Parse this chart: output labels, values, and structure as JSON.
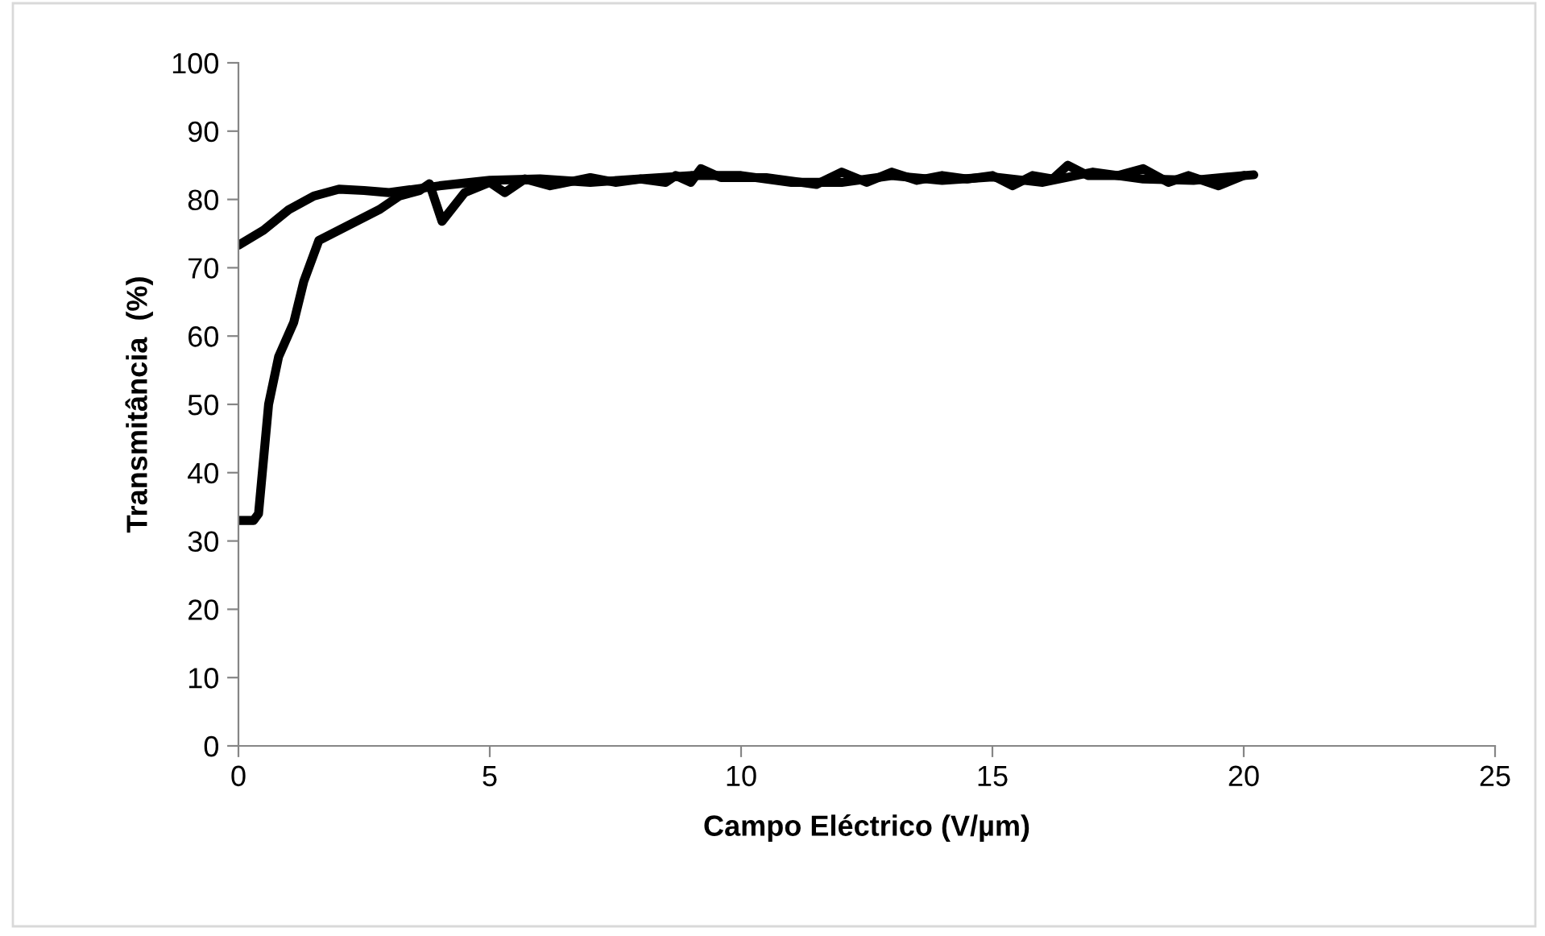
{
  "chart_data": {
    "type": "line",
    "xlabel": "Campo Eléctrico (V/µm)",
    "ylabel": "Transmitância  (%)",
    "xlim": [
      0,
      25
    ],
    "xticks": [
      0,
      5,
      10,
      15,
      20,
      25
    ],
    "ylim": [
      0,
      100
    ],
    "yticks": [
      0,
      10,
      20,
      30,
      40,
      50,
      60,
      70,
      80,
      90,
      100
    ],
    "grid": false,
    "marker": "none",
    "line_style": "solid",
    "series": [
      {
        "color": "#000000",
        "x": [
          0,
          0.5,
          1,
          1.5,
          2,
          2.5,
          3,
          4,
          5,
          6,
          7,
          8,
          9,
          10,
          11,
          12,
          13,
          14,
          15,
          16,
          17,
          18,
          19,
          20
        ],
        "values": [
          73.3,
          75.5,
          78.5,
          80.5,
          81.5,
          81.3,
          81,
          82,
          82.8,
          83,
          82.5,
          83,
          83.5,
          83.5,
          82.5,
          82.5,
          83.5,
          82.8,
          83.3,
          82.5,
          84,
          83,
          82.8,
          83.5
        ]
      },
      {
        "color": "#000000",
        "x": [
          0,
          0.3,
          0.4,
          0.6,
          0.8,
          1.1,
          1.3,
          1.6,
          2,
          2.4,
          2.8,
          3.2,
          3.6,
          3.8,
          4.05,
          4.5,
          5,
          5.3,
          5.7,
          6.2,
          7,
          7.5,
          8,
          8.5,
          8.7,
          9,
          9.2,
          9.6,
          10.5,
          11.5,
          12,
          12.5,
          13,
          13.5,
          14,
          14.5,
          15,
          15.4,
          15.8,
          16.2,
          16.5,
          16.9,
          17.5,
          18,
          18.5,
          18.9,
          19.5,
          20,
          20.2
        ],
        "values": [
          33,
          33,
          34,
          50,
          57,
          62,
          68,
          74,
          75.5,
          77,
          78.5,
          80.5,
          81.3,
          82.3,
          76.8,
          81,
          82.5,
          81,
          83,
          82,
          83.2,
          82.5,
          83,
          82.5,
          83.5,
          82.5,
          84.5,
          83.2,
          83.2,
          82.2,
          84,
          82.5,
          84,
          82.8,
          83.5,
          83,
          83.5,
          82,
          83.5,
          83,
          85,
          83.5,
          83.5,
          84.5,
          82.5,
          83.5,
          82,
          83.5,
          83.6
        ]
      }
    ]
  }
}
